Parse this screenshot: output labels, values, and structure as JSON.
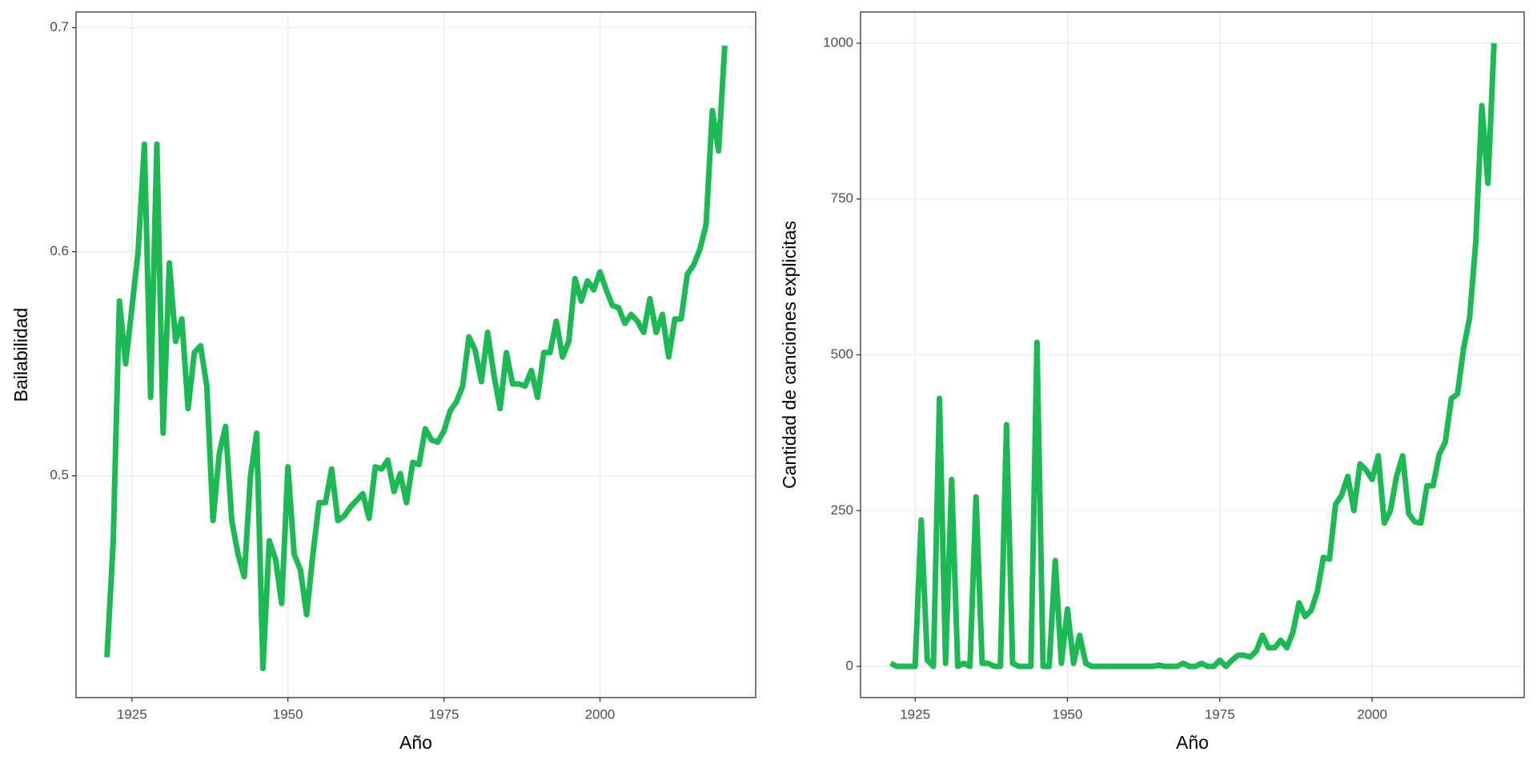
{
  "chart_data": [
    {
      "type": "line",
      "xlabel": "Año",
      "ylabel": "Bailabilidad",
      "color": "#1db954",
      "grid": true,
      "xlim": [
        1916.05,
        2024.95
      ],
      "xticks": [
        1925,
        1950,
        1975,
        2000
      ],
      "ylim": [
        0.401,
        0.707
      ],
      "yticks": [
        0.5,
        0.6,
        0.7
      ],
      "x": [
        1921,
        1922,
        1923,
        1924,
        1925,
        1926,
        1927,
        1928,
        1929,
        1930,
        1931,
        1932,
        1933,
        1934,
        1935,
        1936,
        1937,
        1938,
        1939,
        1940,
        1941,
        1942,
        1943,
        1944,
        1945,
        1946,
        1947,
        1948,
        1949,
        1950,
        1951,
        1952,
        1953,
        1954,
        1955,
        1956,
        1957,
        1958,
        1959,
        1960,
        1961,
        1962,
        1963,
        1964,
        1965,
        1966,
        1967,
        1968,
        1969,
        1970,
        1971,
        1972,
        1973,
        1974,
        1975,
        1976,
        1977,
        1978,
        1979,
        1980,
        1981,
        1982,
        1983,
        1984,
        1985,
        1986,
        1987,
        1988,
        1989,
        1990,
        1991,
        1992,
        1993,
        1994,
        1995,
        1996,
        1997,
        1998,
        1999,
        2000,
        2001,
        2002,
        2003,
        2004,
        2005,
        2006,
        2007,
        2008,
        2009,
        2010,
        2011,
        2012,
        2013,
        2014,
        2015,
        2016,
        2017,
        2018,
        2019,
        2020
      ],
      "values": [
        0.419,
        0.47,
        0.578,
        0.55,
        0.575,
        0.6,
        0.648,
        0.535,
        0.648,
        0.519,
        0.595,
        0.56,
        0.57,
        0.53,
        0.555,
        0.558,
        0.54,
        0.48,
        0.51,
        0.522,
        0.48,
        0.465,
        0.455,
        0.5,
        0.519,
        0.414,
        0.471,
        0.463,
        0.443,
        0.504,
        0.465,
        0.458,
        0.438,
        0.465,
        0.488,
        0.488,
        0.503,
        0.48,
        0.482,
        0.486,
        0.489,
        0.492,
        0.481,
        0.504,
        0.503,
        0.507,
        0.493,
        0.501,
        0.488,
        0.506,
        0.505,
        0.521,
        0.516,
        0.515,
        0.52,
        0.529,
        0.533,
        0.54,
        0.562,
        0.556,
        0.542,
        0.564,
        0.545,
        0.53,
        0.555,
        0.541,
        0.541,
        0.54,
        0.547,
        0.535,
        0.555,
        0.555,
        0.569,
        0.553,
        0.56,
        0.588,
        0.578,
        0.587,
        0.583,
        0.591,
        0.583,
        0.576,
        0.575,
        0.568,
        0.572,
        0.569,
        0.564,
        0.579,
        0.564,
        0.572,
        0.553,
        0.57,
        0.57,
        0.59,
        0.594,
        0.601,
        0.612,
        0.663,
        0.645,
        0.692
      ]
    },
    {
      "type": "line",
      "xlabel": "Año",
      "ylabel": "Cantidad de canciones explicitas",
      "color": "#1db954",
      "grid": true,
      "xlim": [
        1916.05,
        2024.95
      ],
      "xticks": [
        1925,
        1950,
        1975,
        2000
      ],
      "ylim": [
        -50,
        1050
      ],
      "yticks": [
        0,
        250,
        500,
        750,
        1000
      ],
      "x": [
        1921,
        1922,
        1923,
        1924,
        1925,
        1926,
        1927,
        1928,
        1929,
        1930,
        1931,
        1932,
        1933,
        1934,
        1935,
        1936,
        1937,
        1938,
        1939,
        1940,
        1941,
        1942,
        1943,
        1944,
        1945,
        1946,
        1947,
        1948,
        1949,
        1950,
        1951,
        1952,
        1953,
        1954,
        1955,
        1956,
        1957,
        1958,
        1959,
        1960,
        1961,
        1962,
        1963,
        1964,
        1965,
        1966,
        1967,
        1968,
        1969,
        1970,
        1971,
        1972,
        1973,
        1974,
        1975,
        1976,
        1977,
        1978,
        1979,
        1980,
        1981,
        1982,
        1983,
        1984,
        1985,
        1986,
        1987,
        1988,
        1989,
        1990,
        1991,
        1992,
        1993,
        1994,
        1995,
        1996,
        1997,
        1998,
        1999,
        2000,
        2001,
        2002,
        2003,
        2004,
        2005,
        2006,
        2007,
        2008,
        2009,
        2010,
        2011,
        2012,
        2013,
        2014,
        2015,
        2016,
        2017,
        2018,
        2019,
        2020
      ],
      "values": [
        5,
        0,
        0,
        0,
        0,
        235,
        10,
        0,
        430,
        5,
        300,
        0,
        5,
        0,
        272,
        5,
        5,
        0,
        0,
        388,
        5,
        0,
        0,
        0,
        520,
        0,
        0,
        170,
        5,
        92,
        5,
        50,
        5,
        0,
        0,
        0,
        0,
        0,
        0,
        0,
        0,
        0,
        0,
        0,
        2,
        0,
        0,
        0,
        5,
        0,
        0,
        5,
        0,
        0,
        10,
        0,
        10,
        18,
        18,
        15,
        25,
        50,
        30,
        30,
        42,
        30,
        55,
        102,
        80,
        90,
        120,
        175,
        172,
        260,
        275,
        305,
        250,
        325,
        315,
        300,
        338,
        230,
        250,
        305,
        338,
        245,
        232,
        230,
        290,
        290,
        340,
        360,
        430,
        437,
        510,
        560,
        680,
        900,
        775,
        1000
      ]
    }
  ]
}
